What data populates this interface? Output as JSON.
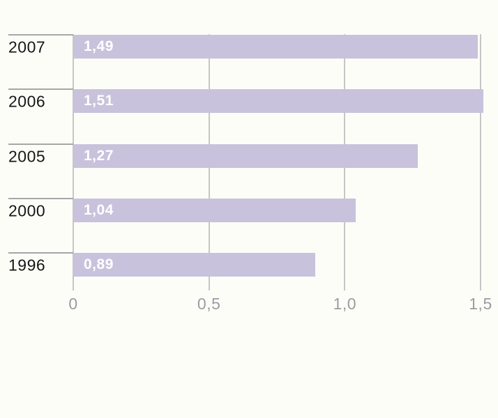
{
  "chart_data": {
    "type": "bar",
    "orientation": "horizontal",
    "title": "",
    "xlabel": "",
    "ylabel": "",
    "categories": [
      "2007",
      "2006",
      "2005",
      "2000",
      "1996"
    ],
    "values": [
      1.49,
      1.51,
      1.27,
      1.04,
      0.89
    ],
    "value_labels": [
      "1,49",
      "1,51",
      "1,27",
      "1,04",
      "0,89"
    ],
    "xlim": [
      0,
      1.5
    ],
    "x_ticks": [
      0,
      0.5,
      1.0,
      1.5
    ],
    "x_tick_labels": [
      "0",
      "0,5",
      "1,0",
      "1,5"
    ],
    "grid": true,
    "legend": "none",
    "colors": {
      "background": "#fdfdf8",
      "bar": "#c8c2dc",
      "bar_value_text": "#ffffff",
      "category_text": "#161616",
      "tick_text": "#9c9ca0",
      "gridline": "#c6c6c6",
      "row_rule": "#a6a6a6"
    }
  }
}
